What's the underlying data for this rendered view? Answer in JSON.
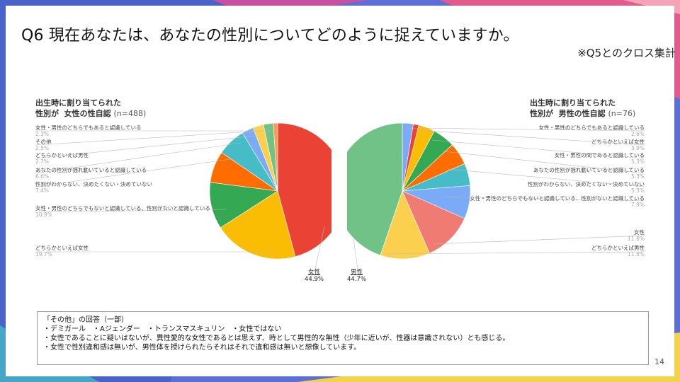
{
  "title": "Q6 現在あなたは、あなたの性別についてどのように捉えていますか。",
  "subtitle": "※Q5とのクロス集計",
  "page_number": "14",
  "colors": {
    "red": "#ea4335",
    "yellow": "#fbbc04",
    "green": "#34a853",
    "orange": "#ff6d01",
    "teal": "#46bdc6",
    "blue": "#7baaf7",
    "salmon": "#f07b72",
    "lightyellow": "#fcd04f",
    "lightgreen": "#71c287",
    "lightorange": "#ff994d"
  },
  "notes": [
    "「その他」の回答（一部）",
    "・デミガール　・Aジェンダー　・トランスマスキュリン　・女性ではない",
    "・女性であることに疑いはないが、異性愛的な女性であるとは思えず、時として男性的な無性（少年に近いが、性器は意識されない）とも感じる。",
    "・女性で性別違和感は無いが、男性体を授けられたらそれはそれで違和感は無いと想像しています。"
  ],
  "chart_data": [
    {
      "type": "pie",
      "title_line1": "出生時に割り当てられた",
      "title_line2": "性別が",
      "title_bold": "女性の性自認",
      "title_n": "(n=488)",
      "slices": [
        {
          "label": "女性",
          "value": 44.9,
          "color": "#ea4335",
          "shown": "44.9%"
        },
        {
          "label": "どちらかといえば女性",
          "value": 19.7,
          "color": "#fbbc04",
          "shown": "19.7%"
        },
        {
          "label": "女性・男性のどちらでもないと認識している、性別がないと認識している",
          "value": 10.9,
          "color": "#34a853",
          "shown": "10.9%"
        },
        {
          "label": "性別がわからない、決めたくない・決めていない",
          "value": 7.4,
          "color": "#ff6d01",
          "shown": "7.4%"
        },
        {
          "label": "あなたの性別が揺れ動いていると認識している",
          "value": 6.6,
          "color": "#46bdc6",
          "shown": "6.6%"
        },
        {
          "label": "どちらかといえば男性",
          "value": 2.7,
          "color": "#7baaf7",
          "shown": "2.7%"
        },
        {
          "label": "その他",
          "value": 2.5,
          "color": "#fcd04f",
          "shown": "2.5%"
        },
        {
          "label": "女性・男性のどちらでもあると認識している",
          "value": 2.3,
          "color": "#71c287",
          "shown": "2.3%"
        },
        {
          "label": "",
          "value": 1.0,
          "color": "#ff994d",
          "shown": ""
        }
      ]
    },
    {
      "type": "pie",
      "title_line1": "出生時に割り当てられた",
      "title_line2": "性別が",
      "title_bold": "男性の性自認",
      "title_n": "(n=76)",
      "slices": [
        {
          "label": "女性・男性のどちらでもあると認識している",
          "value": 2.6,
          "color": "#7baaf7",
          "shown": "2.6%"
        },
        {
          "label": "",
          "value": 1.3,
          "color": "#ea4335",
          "shown": ""
        },
        {
          "label": "どちらかといえば女性",
          "value": 3.9,
          "color": "#fbbc04",
          "shown": "3.9%"
        },
        {
          "label": "女性・男性の間であると認識している",
          "value": 5.3,
          "color": "#34a853",
          "shown": "5.3%"
        },
        {
          "label": "あなたの性別が揺れ動いていると認識している",
          "value": 5.3,
          "color": "#ff6d01",
          "shown": "5.3%"
        },
        {
          "label": "性別がわからない、決めたくない・決めていない",
          "value": 5.3,
          "color": "#46bdc6",
          "shown": "5.3%"
        },
        {
          "label": "女性・男性のどちらでもないと認識している、性別がないと認識している",
          "value": 7.9,
          "color": "#7baaf7",
          "shown": "7.9%"
        },
        {
          "label": "女性",
          "value": 11.8,
          "color": "#f07b72",
          "shown": "11.8%"
        },
        {
          "label": "どちらかといえば男性",
          "value": 11.8,
          "color": "#fcd04f",
          "shown": "11.8%"
        },
        {
          "label": "男性",
          "value": 44.7,
          "color": "#71c287",
          "shown": "44.7%"
        }
      ]
    }
  ]
}
